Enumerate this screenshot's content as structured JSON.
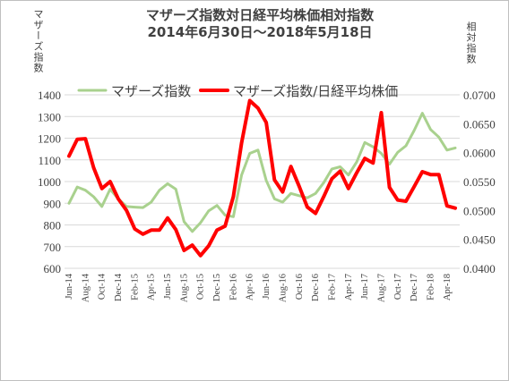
{
  "chart_data": {
    "type": "line",
    "title": "マザーズ指数対日経平均株価相対指数",
    "subtitle": "2014年6月30日～2018年5月18日",
    "ylabel_left": "マザーズ指数",
    "ylabel_right": "相対指数",
    "ylim_left": [
      600,
      1400
    ],
    "yticks_left": [
      "600",
      "700",
      "800",
      "900",
      "1000",
      "1100",
      "1200",
      "1300",
      "1400"
    ],
    "ylim_right": [
      0.04,
      0.07
    ],
    "yticks_right": [
      "0.0400",
      "0.0450",
      "0.0500",
      "0.0550",
      "0.0600",
      "0.0650",
      "0.0700"
    ],
    "grid": true,
    "legend_position": "top",
    "x_tick_labels": [
      "Jun-14",
      "Aug-14",
      "Oct-14",
      "Dec-14",
      "Feb-15",
      "Apr-15",
      "Jun-15",
      "Aug-15",
      "Oct-15",
      "Dec-15",
      "Feb-16",
      "Apr-16",
      "Jun-16",
      "Aug-16",
      "Oct-16",
      "Dec-16",
      "Feb-17",
      "Apr-17",
      "Jun-17",
      "Aug-17",
      "Oct-17",
      "Dec-17",
      "Feb-18",
      "Apr-18"
    ],
    "x": [
      "Jun-14",
      "Jul-14",
      "Aug-14",
      "Sep-14",
      "Oct-14",
      "Nov-14",
      "Dec-14",
      "Jan-15",
      "Feb-15",
      "Mar-15",
      "Apr-15",
      "May-15",
      "Jun-15",
      "Jul-15",
      "Aug-15",
      "Sep-15",
      "Oct-15",
      "Nov-15",
      "Dec-15",
      "Jan-16",
      "Feb-16",
      "Mar-16",
      "Apr-16",
      "May-16",
      "Jun-16",
      "Jul-16",
      "Aug-16",
      "Sep-16",
      "Oct-16",
      "Nov-16",
      "Dec-16",
      "Jan-17",
      "Feb-17",
      "Mar-17",
      "Apr-17",
      "May-17",
      "Jun-17",
      "Jul-17",
      "Aug-17",
      "Sep-17",
      "Oct-17",
      "Nov-17",
      "Dec-17",
      "Jan-18",
      "Feb-18",
      "Mar-18",
      "Apr-18",
      "May-18"
    ],
    "series": [
      {
        "name": "マザーズ指数",
        "axis": "left",
        "color": "#a9d18e",
        "values": [
          900,
          975,
          960,
          930,
          885,
          965,
          920,
          885,
          882,
          880,
          905,
          960,
          990,
          965,
          815,
          770,
          810,
          865,
          890,
          845,
          838,
          1030,
          1130,
          1145,
          1005,
          920,
          905,
          945,
          935,
          925,
          945,
          995,
          1058,
          1068,
          1030,
          1090,
          1180,
          1160,
          1130,
          1080,
          1135,
          1165,
          1235,
          1315,
          1240,
          1205,
          1145,
          1155
        ]
      },
      {
        "name": "マザーズ指数/日経平均株価",
        "axis": "right",
        "color": "#ff0000",
        "values": [
          0.0594,
          0.0623,
          0.0624,
          0.0574,
          0.0538,
          0.055,
          0.052,
          0.05,
          0.0468,
          0.0459,
          0.0466,
          0.0466,
          0.0487,
          0.0467,
          0.0431,
          0.044,
          0.0422,
          0.0439,
          0.0466,
          0.0473,
          0.0524,
          0.0617,
          0.069,
          0.0677,
          0.0652,
          0.0553,
          0.0532,
          0.0576,
          0.0542,
          0.0506,
          0.0495,
          0.0524,
          0.0555,
          0.0568,
          0.0538,
          0.0565,
          0.059,
          0.0582,
          0.0669,
          0.054,
          0.0518,
          0.0516,
          0.0541,
          0.0567,
          0.0562,
          0.0562,
          0.0508,
          0.0504
        ]
      }
    ]
  }
}
